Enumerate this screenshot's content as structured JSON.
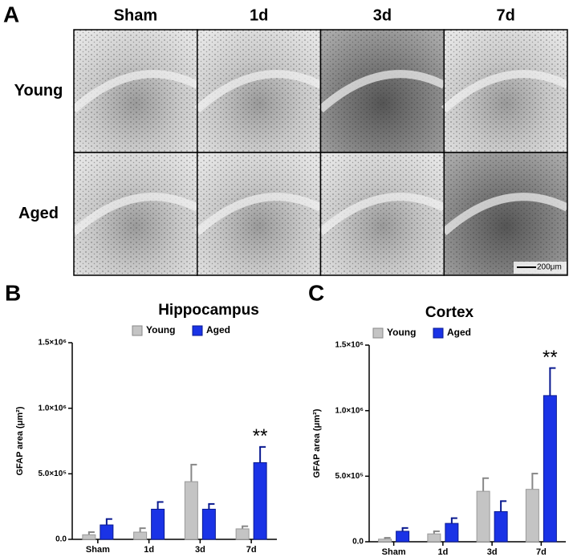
{
  "panel_labels": [
    "A",
    "B",
    "C"
  ],
  "micrographs": {
    "columns": [
      "Sham",
      "1d",
      "3d",
      "7d"
    ],
    "rows": [
      "Young",
      "Aged"
    ],
    "scale_bar": "200μm"
  },
  "chart_data": [
    {
      "type": "bar",
      "title": "Hippocampus",
      "ylabel": "GFAP area (μm²)",
      "annotation": "**",
      "categories": [
        "Sham",
        "1d",
        "3d",
        "7d"
      ],
      "series": [
        {
          "name": "Young",
          "color": "#c4c4c4",
          "values": [
            35000,
            55000,
            440000,
            80000
          ],
          "errors": [
            20000,
            30000,
            130000,
            20000
          ]
        },
        {
          "name": "Aged",
          "color": "#1a33e6",
          "values": [
            110000,
            230000,
            230000,
            585000
          ],
          "errors": [
            45000,
            55000,
            40000,
            120000
          ]
        }
      ],
      "ylim": [
        0,
        1500000
      ],
      "yticks": [
        {
          "value": 0,
          "label": "0.0"
        },
        {
          "value": 500000,
          "label": "5.0×10⁵"
        },
        {
          "value": 1000000,
          "label": "1.0×10⁶"
        },
        {
          "value": 1500000,
          "label": "1.5×10⁶"
        }
      ],
      "grid": false
    },
    {
      "type": "bar",
      "title": "Cortex",
      "ylabel": "GFAP area (μm²)",
      "annotation": "**",
      "categories": [
        "Sham",
        "1d",
        "3d",
        "7d"
      ],
      "series": [
        {
          "name": "Young",
          "color": "#c4c4c4",
          "values": [
            20000,
            60000,
            385000,
            400000
          ],
          "errors": [
            10000,
            20000,
            100000,
            120000
          ]
        },
        {
          "name": "Aged",
          "color": "#1a33e6",
          "values": [
            80000,
            140000,
            230000,
            1115000
          ],
          "errors": [
            25000,
            40000,
            80000,
            210000
          ]
        }
      ],
      "ylim": [
        0,
        1500000
      ],
      "yticks": [
        {
          "value": 0,
          "label": "0.0"
        },
        {
          "value": 500000,
          "label": "5.0×10⁵"
        },
        {
          "value": 1000000,
          "label": "1.0×10⁶"
        },
        {
          "value": 1500000,
          "label": "1.5×10⁶"
        }
      ],
      "grid": false
    }
  ]
}
